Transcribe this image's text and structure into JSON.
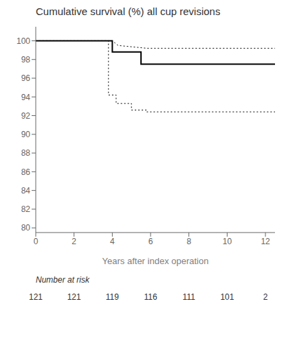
{
  "chart_data": {
    "type": "line",
    "title": "Cumulative survival (%) all cup revisions",
    "xlabel": "Years after index operation",
    "xlim": [
      0,
      12.5
    ],
    "ylim": [
      79.5,
      101.5
    ],
    "xticks": [
      0,
      2,
      4,
      6,
      8,
      10,
      12
    ],
    "yticks": [
      80,
      82,
      84,
      86,
      88,
      90,
      92,
      94,
      96,
      98,
      100
    ],
    "grid": false,
    "series": [
      {
        "x": [
          0,
          4.0,
          4.0,
          5.5,
          5.5,
          12.5
        ],
        "values": [
          100,
          100,
          98.8,
          98.8,
          97.5,
          97.5
        ],
        "color": "#000000",
        "line_style": "solid"
      },
      {
        "x": [
          0,
          4.0,
          4.0,
          4.3,
          4.3,
          5.3,
          5.3,
          5.8,
          5.8,
          12.5
        ],
        "values": [
          100,
          100,
          100,
          99.5,
          99.5,
          99.3,
          99.3,
          99.2,
          99.2,
          99.2
        ],
        "color": "#000000",
        "line_style": "dotted"
      },
      {
        "x": [
          0,
          3.8,
          3.8,
          4.2,
          4.2,
          5.0,
          5.0,
          5.8,
          5.8,
          12.5
        ],
        "values": [
          100,
          100,
          94.2,
          94.2,
          93.3,
          93.3,
          92.6,
          92.6,
          92.4,
          92.4
        ],
        "color": "#000000",
        "line_style": "dotted"
      }
    ],
    "number_at_risk": {
      "label": "Number at risk",
      "x": [
        0,
        2,
        4,
        6,
        8,
        10,
        12
      ],
      "values": [
        121,
        121,
        119,
        116,
        111,
        101,
        2
      ]
    }
  }
}
